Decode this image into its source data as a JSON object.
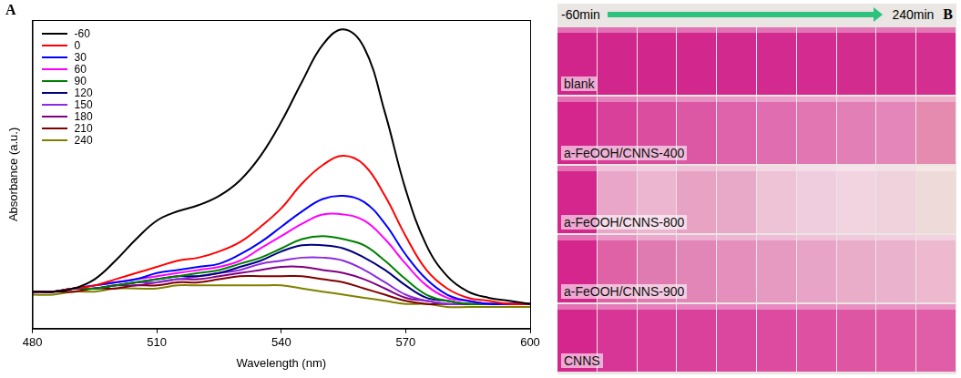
{
  "chart_data": {
    "type": "line",
    "panel_label": "A",
    "x_label": "Wavelength (nm)",
    "y_label": "Absorbance (a.u.)",
    "x": [
      480,
      485,
      490,
      495,
      500,
      505,
      510,
      515,
      520,
      525,
      530,
      535,
      540,
      545,
      550,
      555,
      560,
      565,
      570,
      575,
      580,
      585,
      590,
      595,
      600
    ],
    "series": [
      {
        "name": "-60",
        "color": "#000000",
        "values": [
          0.12,
          0.12,
          0.13,
          0.16,
          0.22,
          0.29,
          0.35,
          0.38,
          0.4,
          0.43,
          0.48,
          0.56,
          0.67,
          0.8,
          0.92,
          0.97,
          0.91,
          0.7,
          0.45,
          0.27,
          0.17,
          0.12,
          0.1,
          0.09,
          0.08
        ]
      },
      {
        "name": "0",
        "color": "#ff0000",
        "values": [
          0.12,
          0.12,
          0.13,
          0.14,
          0.16,
          0.18,
          0.2,
          0.22,
          0.23,
          0.25,
          0.28,
          0.33,
          0.39,
          0.47,
          0.53,
          0.56,
          0.53,
          0.43,
          0.3,
          0.19,
          0.13,
          0.1,
          0.09,
          0.08,
          0.08
        ]
      },
      {
        "name": "30",
        "color": "#0000ff",
        "values": [
          0.12,
          0.12,
          0.13,
          0.14,
          0.15,
          0.16,
          0.18,
          0.19,
          0.2,
          0.21,
          0.24,
          0.28,
          0.33,
          0.38,
          0.42,
          0.43,
          0.41,
          0.34,
          0.24,
          0.16,
          0.11,
          0.09,
          0.08,
          0.08,
          0.08
        ]
      },
      {
        "name": "60",
        "color": "#ff00ff",
        "values": [
          0.12,
          0.12,
          0.13,
          0.14,
          0.15,
          0.16,
          0.17,
          0.18,
          0.19,
          0.2,
          0.22,
          0.26,
          0.3,
          0.34,
          0.37,
          0.37,
          0.35,
          0.29,
          0.21,
          0.14,
          0.1,
          0.09,
          0.08,
          0.08,
          0.08
        ]
      },
      {
        "name": "90",
        "color": "#008000",
        "values": [
          0.12,
          0.12,
          0.13,
          0.13,
          0.14,
          0.15,
          0.16,
          0.17,
          0.18,
          0.19,
          0.21,
          0.23,
          0.26,
          0.29,
          0.3,
          0.29,
          0.27,
          0.22,
          0.16,
          0.11,
          0.09,
          0.08,
          0.08,
          0.08,
          0.08
        ]
      },
      {
        "name": "120",
        "color": "#000080",
        "values": [
          0.12,
          0.12,
          0.13,
          0.13,
          0.14,
          0.15,
          0.16,
          0.17,
          0.17,
          0.18,
          0.2,
          0.22,
          0.25,
          0.27,
          0.27,
          0.26,
          0.23,
          0.19,
          0.14,
          0.1,
          0.09,
          0.08,
          0.08,
          0.08,
          0.08
        ]
      },
      {
        "name": "150",
        "color": "#8a2be2",
        "values": [
          0.12,
          0.12,
          0.13,
          0.13,
          0.14,
          0.15,
          0.15,
          0.16,
          0.17,
          0.18,
          0.19,
          0.21,
          0.22,
          0.23,
          0.23,
          0.22,
          0.19,
          0.15,
          0.11,
          0.09,
          0.08,
          0.08,
          0.08,
          0.08,
          0.08
        ]
      },
      {
        "name": "180",
        "color": "#800080",
        "values": [
          0.12,
          0.12,
          0.13,
          0.13,
          0.14,
          0.14,
          0.15,
          0.16,
          0.16,
          0.17,
          0.18,
          0.19,
          0.2,
          0.2,
          0.19,
          0.18,
          0.16,
          0.13,
          0.1,
          0.09,
          0.08,
          0.08,
          0.08,
          0.08,
          0.08
        ]
      },
      {
        "name": "210",
        "color": "#800000",
        "values": [
          0.12,
          0.12,
          0.12,
          0.13,
          0.13,
          0.14,
          0.14,
          0.15,
          0.15,
          0.16,
          0.17,
          0.17,
          0.17,
          0.17,
          0.16,
          0.15,
          0.13,
          0.11,
          0.09,
          0.08,
          0.08,
          0.08,
          0.08,
          0.08,
          0.08
        ]
      },
      {
        "name": "240",
        "color": "#808000",
        "values": [
          0.11,
          0.11,
          0.12,
          0.12,
          0.13,
          0.13,
          0.13,
          0.14,
          0.14,
          0.14,
          0.14,
          0.14,
          0.14,
          0.13,
          0.12,
          0.11,
          0.1,
          0.09,
          0.08,
          0.08,
          0.07,
          0.07,
          0.07,
          0.07,
          0.07
        ]
      }
    ],
    "xlim": [
      480,
      600
    ],
    "xticks": [
      480,
      510,
      540,
      570,
      600
    ],
    "ylim": [
      0,
      1
    ],
    "grid": false,
    "legend": "upper left",
    "tick_labels": "x"
  },
  "photo_panel": {
    "label": "B",
    "time_start": "-60min",
    "time_end": "240min",
    "rows": [
      {
        "label": "blank",
        "colors": [
          "#d1258c",
          "#d1268c",
          "#d1278d",
          "#d2288d",
          "#d2298e",
          "#d22a8e",
          "#d32b8f",
          "#d32c8f",
          "#d32d90",
          "#d42e90"
        ]
      },
      {
        "label": "a-FeOOH/CNNS-400",
        "colors": [
          "#d4268c",
          "#d8409a",
          "#da4d9f",
          "#dc58a5",
          "#de63aa",
          "#e06daf",
          "#e276b3",
          "#e37fb7",
          "#e486ba",
          "#e58bb0"
        ]
      },
      {
        "label": "a-FeOOH/CNNS-800",
        "colors": [
          "#d4268c",
          "#e9a6c8",
          "#ecb5d0",
          "#e7a2c4",
          "#e8a9c8",
          "#eec3d6",
          "#f0cdde",
          "#f1d4e0",
          "#efd2dc",
          "#eedad8"
        ]
      },
      {
        "label": "a-FeOOH/CNNS-900",
        "colors": [
          "#d4268c",
          "#df62a6",
          "#e07bb2",
          "#e286b8",
          "#e48fbc",
          "#e69ac2",
          "#e8a4c7",
          "#e9acc9",
          "#eab2cc",
          "#ecb9cf"
        ]
      },
      {
        "label": "CNNS",
        "colors": [
          "#d4268c",
          "#d83696",
          "#d93c99",
          "#da419b",
          "#db469e",
          "#dc4ba0",
          "#dd50a2",
          "#de55a4",
          "#df59a6",
          "#e05ea8"
        ]
      }
    ]
  }
}
